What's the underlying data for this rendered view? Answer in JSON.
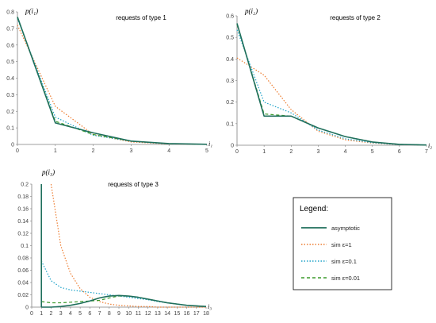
{
  "chart_data": [
    {
      "type": "line",
      "title": "requests of type 1",
      "ylabel": "p(i₁)",
      "xlabel": "i₁",
      "x": [
        0,
        1,
        2,
        3,
        4,
        5
      ],
      "xticks": [
        "0",
        "1",
        "2",
        "3",
        "4",
        "5"
      ],
      "ylim": [
        0,
        0.8
      ],
      "yticks": [
        "0",
        "0.1",
        "0.2",
        "0.3",
        "0.4",
        "0.5",
        "0.6",
        "0.7",
        "0.8"
      ],
      "series": [
        {
          "name": "asymptotic",
          "values": [
            0.77,
            0.13,
            0.07,
            0.02,
            0.005,
            0.001
          ]
        },
        {
          "name": "sim ε=1",
          "values": [
            0.72,
            0.23,
            0.06,
            0.015,
            0.003,
            0.001
          ]
        },
        {
          "name": "sim ε=0.1",
          "values": [
            0.76,
            0.165,
            0.055,
            0.02,
            0.004,
            0.001
          ]
        },
        {
          "name": "sim ε=0.01",
          "values": [
            0.765,
            0.14,
            0.06,
            0.02,
            0.004,
            0.001
          ]
        }
      ]
    },
    {
      "type": "line",
      "title": "requests of type 2",
      "ylabel": "p(i₂)",
      "xlabel": "i₂",
      "x": [
        0,
        1,
        2,
        3,
        4,
        5,
        6,
        7
      ],
      "xticks": [
        "0",
        "1",
        "2",
        "3",
        "4",
        "5",
        "6",
        "7"
      ],
      "ylim": [
        0,
        0.6
      ],
      "yticks": [
        "0",
        "0.1",
        "0.2",
        "0.3",
        "0.4",
        "0.5",
        "0.6"
      ],
      "series": [
        {
          "name": "asymptotic",
          "values": [
            0.565,
            0.135,
            0.135,
            0.08,
            0.04,
            0.015,
            0.004,
            0.001
          ]
        },
        {
          "name": "sim ε=1",
          "values": [
            0.405,
            0.325,
            0.165,
            0.065,
            0.025,
            0.01,
            0.003,
            0.001
          ]
        },
        {
          "name": "sim ε=0.1",
          "values": [
            0.535,
            0.2,
            0.15,
            0.07,
            0.03,
            0.012,
            0.003,
            0.001
          ]
        },
        {
          "name": "sim ε=0.01",
          "values": [
            0.56,
            0.145,
            0.135,
            0.08,
            0.04,
            0.015,
            0.004,
            0.001
          ]
        }
      ]
    },
    {
      "type": "line",
      "title": "requests of type 3",
      "ylabel": "p(i₃)",
      "xlabel": "i₃",
      "x": [
        0,
        1,
        2,
        3,
        4,
        5,
        6,
        7,
        8,
        9,
        10,
        11,
        12,
        13,
        14,
        15,
        16,
        17,
        18
      ],
      "xticks": [
        "0",
        "1",
        "2",
        "3",
        "4",
        "5",
        "6",
        "7",
        "8",
        "9",
        "10",
        "11",
        "12",
        "13",
        "14",
        "15",
        "16",
        "17",
        "18"
      ],
      "ylim": [
        0,
        0.2
      ],
      "yticks": [
        "0",
        "0.02",
        "0.04",
        "0.06",
        "0.08",
        "0.1",
        "0.12",
        "0.14",
        "0.16",
        "0.18",
        "0.2"
      ],
      "series": [
        {
          "name": "asymptotic",
          "values": [
            null,
            0.0,
            0.0,
            0.001,
            0.003,
            0.006,
            0.01,
            0.015,
            0.018,
            0.019,
            0.018,
            0.016,
            0.013,
            0.01,
            0.007,
            0.005,
            0.003,
            0.002,
            0.001
          ]
        },
        {
          "name": "sim ε=1",
          "values": [
            null,
            null,
            0.2,
            0.1,
            0.055,
            0.03,
            0.016,
            0.009,
            0.005,
            0.003,
            0.002,
            0.001,
            0.001,
            0.0,
            0.0,
            0.0,
            0.0,
            0.0,
            0.0
          ]
        },
        {
          "name": "sim ε=0.1",
          "values": [
            null,
            0.075,
            0.043,
            0.032,
            0.028,
            0.026,
            0.024,
            0.022,
            0.02,
            0.018,
            0.016,
            0.014,
            0.012,
            0.009,
            0.007,
            0.005,
            0.003,
            0.002,
            0.001
          ]
        },
        {
          "name": "sim ε=0.01",
          "values": [
            null,
            0.009,
            0.007,
            0.007,
            0.008,
            0.009,
            0.01,
            0.011,
            0.015,
            0.018,
            0.018,
            0.016,
            0.013,
            0.01,
            0.007,
            0.005,
            0.003,
            0.002,
            0.001
          ]
        }
      ]
    }
  ],
  "legend": {
    "title": "Legend:",
    "items": [
      {
        "label": "asymptotic",
        "color": "#1f6f5c",
        "dash": "solid"
      },
      {
        "label": "sim ε=1",
        "color": "#ed7d31",
        "dash": "dot"
      },
      {
        "label": "sim ε=0.1",
        "color": "#1fa3c9",
        "dash": "dot"
      },
      {
        "label": "sim ε=0.01",
        "color": "#3a9a2a",
        "dash": "dash"
      }
    ]
  },
  "colors": {
    "asymptotic": "#1f6f5c",
    "sim_eps_1": "#ed7d31",
    "sim_eps_0_1": "#1fa3c9",
    "sim_eps_0_01": "#3a9a2a",
    "axis": "#7f7f7f"
  }
}
